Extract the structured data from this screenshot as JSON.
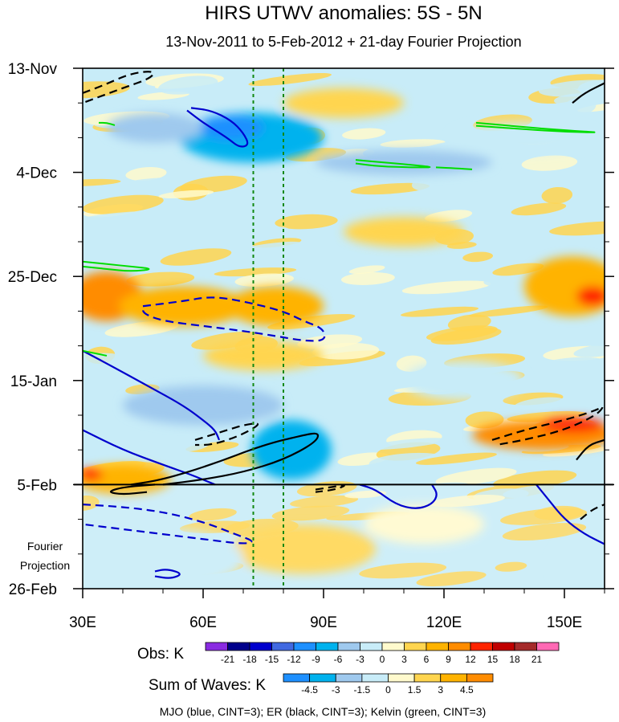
{
  "chart_data": {
    "type": "heatmap",
    "title": "HIRS UTWV anomalies: 5S - 5N",
    "subtitle": "13-Nov-2011 to 5-Feb-2012 + 21-day Fourier Projection",
    "xlabel": "",
    "ylabel": "",
    "x_axis": {
      "range": [
        30,
        160
      ],
      "ticks": [
        {
          "value": 30,
          "label": "30E"
        },
        {
          "value": 60,
          "label": "60E"
        },
        {
          "value": 90,
          "label": "90E"
        },
        {
          "value": 120,
          "label": "120E"
        },
        {
          "value": 150,
          "label": "150E"
        }
      ]
    },
    "y_axis": {
      "range_days": [
        0,
        105
      ],
      "direction": "down",
      "ticks": [
        {
          "day": 0,
          "label": "13-Nov"
        },
        {
          "day": 21,
          "label": "4-Dec"
        },
        {
          "day": 42,
          "label": "25-Dec"
        },
        {
          "day": 63,
          "label": "15-Jan"
        },
        {
          "day": 84,
          "label": "5-Feb"
        },
        {
          "day": 105,
          "label": "26-Feb"
        }
      ]
    },
    "projection_start_day": 84,
    "projection_label": [
      "Fourier",
      "Projection"
    ],
    "reference_lines_lon": [
      72.5,
      80
    ],
    "obs_colorbar": {
      "title": "Obs: K",
      "levels": [
        "-21",
        "-18",
        "-15",
        "-12",
        "-9",
        "-6",
        "-3",
        "0",
        "3",
        "6",
        "9",
        "12",
        "15",
        "18",
        "21"
      ],
      "colors": [
        "#8a2be2",
        "#00008b",
        "#0000cd",
        "#4169e1",
        "#1e90ff",
        "#00b2ee",
        "#9fc9ee",
        "#c8ecf8",
        "#fffacd",
        "#ffd54f",
        "#ffb300",
        "#ff8c00",
        "#ff2400",
        "#c00000",
        "#a52a2a",
        "#ff69b4"
      ]
    },
    "waves_colorbar": {
      "title": "Sum of Waves: K",
      "levels": [
        "-4.5",
        "-3",
        "-1.5",
        "0",
        "1.5",
        "3",
        "4.5"
      ],
      "colors": [
        "#1e90ff",
        "#00b2ee",
        "#9fc9ee",
        "#c8ecf8",
        "#fffacd",
        "#ffd54f",
        "#ffb300",
        "#ff8c00"
      ]
    },
    "legend_note": "MJO (blue, CINT=3); ER (black, CINT=3); Kelvin (green, CINT=3)",
    "contours": [
      {
        "wave": "MJO",
        "color": "#0000cd",
        "style": "solid",
        "points": [
          [
            57,
            8
          ],
          [
            62,
            8.5
          ],
          [
            67,
            10.5
          ],
          [
            70,
            13
          ],
          [
            71.5,
            15.5
          ],
          [
            69,
            16
          ],
          [
            66,
            14
          ],
          [
            60,
            11
          ],
          [
            56,
            8.5
          ]
        ]
      },
      {
        "wave": "MJO",
        "color": "#0000cd",
        "style": "solid",
        "points": [
          [
            30,
            57
          ],
          [
            37,
            60
          ],
          [
            46,
            64
          ],
          [
            55,
            68
          ],
          [
            60,
            71
          ],
          [
            63,
            73
          ],
          [
            64,
            75
          ]
        ]
      },
      {
        "wave": "MJO",
        "color": "#0000cd",
        "style": "solid",
        "points": [
          [
            30,
            73
          ],
          [
            40,
            77
          ],
          [
            50,
            80
          ],
          [
            57,
            82
          ],
          [
            63,
            84
          ]
        ]
      },
      {
        "wave": "MJO",
        "color": "#0000cd",
        "style": "solid",
        "points": [
          [
            99,
            84
          ],
          [
            103,
            85
          ],
          [
            108,
            88
          ],
          [
            113,
            89
          ],
          [
            117,
            88
          ],
          [
            118.5,
            86
          ],
          [
            117,
            84
          ]
        ]
      },
      {
        "wave": "MJO",
        "color": "#0000cd",
        "style": "solid",
        "points": [
          [
            143,
            84
          ],
          [
            146,
            87
          ],
          [
            150,
            91
          ],
          [
            155,
            94
          ],
          [
            160,
            96
          ]
        ]
      },
      {
        "wave": "MJO",
        "color": "#0000cd",
        "style": "solid",
        "points": [
          [
            48,
            101.5
          ],
          [
            51,
            101
          ],
          [
            55,
            102
          ],
          [
            52,
            103
          ],
          [
            48,
            102.5
          ]
        ]
      },
      {
        "wave": "MJO",
        "color": "#0000cd",
        "style": "dashed",
        "points": [
          [
            45,
            48
          ],
          [
            55,
            47
          ],
          [
            62,
            46
          ],
          [
            70,
            47
          ],
          [
            80,
            49
          ],
          [
            85,
            51
          ],
          [
            90,
            52.5
          ],
          [
            90.5,
            55
          ],
          [
            85,
            55
          ],
          [
            78,
            54
          ],
          [
            70,
            53
          ],
          [
            60,
            52
          ],
          [
            50,
            51
          ],
          [
            45,
            49.5
          ],
          [
            45,
            48
          ]
        ]
      },
      {
        "wave": "MJO",
        "color": "#0000cd",
        "style": "dashed",
        "points": [
          [
            30,
            88
          ],
          [
            40,
            88.5
          ],
          [
            50,
            89.5
          ],
          [
            60,
            91.5
          ],
          [
            68,
            94
          ],
          [
            73,
            95.5
          ],
          [
            70,
            96
          ],
          [
            60,
            95
          ],
          [
            50,
            94
          ],
          [
            40,
            93
          ],
          [
            30,
            92
          ]
        ]
      },
      {
        "wave": "ER",
        "color": "#000000",
        "style": "dashed",
        "points": [
          [
            30,
            5
          ],
          [
            35,
            3.5
          ],
          [
            42,
            1
          ],
          [
            48,
            0.5
          ],
          [
            47,
            2
          ],
          [
            40,
            4
          ],
          [
            35,
            5.5
          ],
          [
            30,
            7
          ]
        ]
      },
      {
        "wave": "ER",
        "color": "#000000",
        "style": "dashed",
        "points": [
          [
            58,
            75
          ],
          [
            62,
            74
          ],
          [
            66,
            73
          ],
          [
            70,
            72
          ],
          [
            74,
            71.5
          ],
          [
            73,
            72.5
          ],
          [
            68,
            74.5
          ],
          [
            62,
            76
          ],
          [
            58,
            76
          ]
        ]
      },
      {
        "wave": "ER",
        "color": "#000000",
        "style": "dashed",
        "points": [
          [
            132,
            75
          ],
          [
            140,
            73
          ],
          [
            150,
            71
          ],
          [
            158,
            69
          ],
          [
            160,
            68
          ],
          [
            158,
            70
          ],
          [
            150,
            73
          ],
          [
            140,
            75
          ],
          [
            133,
            76
          ]
        ]
      },
      {
        "wave": "ER",
        "color": "#000000",
        "style": "dashed",
        "points": [
          [
            88,
            85
          ],
          [
            92,
            84.5
          ],
          [
            96,
            84
          ],
          [
            93,
            85
          ],
          [
            88,
            85.5
          ]
        ]
      },
      {
        "wave": "ER",
        "color": "#000000",
        "style": "dashed",
        "points": [
          [
            154,
            91
          ],
          [
            157,
            89
          ],
          [
            160,
            88
          ]
        ]
      },
      {
        "wave": "ER",
        "color": "#000000",
        "style": "solid",
        "points": [
          [
            42,
            84
          ],
          [
            50,
            83
          ],
          [
            62,
            80
          ],
          [
            75,
            76
          ],
          [
            85,
            74
          ],
          [
            89,
            73.5
          ],
          [
            88,
            75.5
          ],
          [
            80,
            79
          ],
          [
            70,
            81.5
          ],
          [
            60,
            83
          ],
          [
            50,
            84
          ]
        ]
      },
      {
        "wave": "ER",
        "color": "#000000",
        "style": "solid",
        "points": [
          [
            48,
            84
          ],
          [
            40,
            84.5
          ],
          [
            36,
            85.5
          ],
          [
            40,
            86
          ],
          [
            46,
            85.5
          ]
        ]
      },
      {
        "wave": "ER",
        "color": "#000000",
        "style": "solid",
        "points": [
          [
            153,
            79
          ],
          [
            156,
            76
          ],
          [
            160,
            75
          ]
        ]
      },
      {
        "wave": "ER",
        "color": "#000000",
        "style": "solid",
        "points": [
          [
            152,
            7
          ],
          [
            155,
            5
          ],
          [
            160,
            3
          ]
        ]
      },
      {
        "wave": "Kelvin",
        "color": "#00dd00",
        "style": "solid",
        "points": [
          [
            30,
            39
          ],
          [
            36,
            39.5
          ],
          [
            42,
            40
          ],
          [
            48,
            40.5
          ],
          [
            42,
            41
          ],
          [
            36,
            40.5
          ],
          [
            30,
            40
          ]
        ]
      },
      {
        "wave": "Kelvin",
        "color": "#00dd00",
        "style": "solid",
        "points": [
          [
            30,
            57
          ],
          [
            33,
            57.5
          ],
          [
            36,
            58
          ]
        ]
      },
      {
        "wave": "Kelvin",
        "color": "#00dd00",
        "style": "solid",
        "points": [
          [
            98,
            18.5
          ],
          [
            105,
            19
          ],
          [
            112,
            19.5
          ],
          [
            118,
            20
          ],
          [
            112,
            20
          ],
          [
            104,
            19.8
          ],
          [
            98,
            19.2
          ]
        ]
      },
      {
        "wave": "Kelvin",
        "color": "#00dd00",
        "style": "solid",
        "points": [
          [
            118,
            20
          ],
          [
            123,
            20.2
          ],
          [
            127,
            20.4
          ]
        ]
      },
      {
        "wave": "Kelvin",
        "color": "#00dd00",
        "style": "solid",
        "points": [
          [
            128,
            11
          ],
          [
            135,
            11.5
          ],
          [
            142,
            12
          ],
          [
            150,
            12.5
          ],
          [
            160,
            13
          ],
          [
            150,
            12.8
          ],
          [
            140,
            12.3
          ],
          [
            128,
            11.6
          ]
        ]
      },
      {
        "wave": "Kelvin",
        "color": "#00dd00",
        "style": "solid",
        "points": [
          [
            34,
            11
          ],
          [
            36,
            11
          ],
          [
            38,
            11.5
          ]
        ]
      }
    ],
    "anomaly_blobs": [
      {
        "lon": 72,
        "day": 14,
        "rlon": 18,
        "rday": 5,
        "value": -9
      },
      {
        "lon": 67,
        "day": 12,
        "rlon": 8,
        "rday": 2.5,
        "value": -12
      },
      {
        "lon": 48,
        "day": 12,
        "rlon": 12,
        "rday": 3,
        "value": -6
      },
      {
        "lon": 110,
        "day": 19,
        "rlon": 22,
        "rday": 2.5,
        "value": -6
      },
      {
        "lon": 140,
        "day": 14,
        "rlon": 18,
        "rday": 3,
        "value": -3
      },
      {
        "lon": 95,
        "day": 7,
        "rlon": 15,
        "rday": 3,
        "value": 3
      },
      {
        "lon": 36,
        "day": 46,
        "rlon": 9,
        "rday": 5,
        "value": 9
      },
      {
        "lon": 55,
        "day": 48,
        "rlon": 16,
        "rday": 4,
        "value": 6
      },
      {
        "lon": 78,
        "day": 48,
        "rlon": 12,
        "rday": 4,
        "value": 6
      },
      {
        "lon": 152,
        "day": 44,
        "rlon": 12,
        "rday": 6,
        "value": 6
      },
      {
        "lon": 157,
        "day": 46,
        "rlon": 4,
        "rday": 2,
        "value": 12
      },
      {
        "lon": 60,
        "day": 68,
        "rlon": 20,
        "rday": 4,
        "value": -6
      },
      {
        "lon": 82,
        "day": 77,
        "rlon": 10,
        "rday": 6,
        "value": -9
      },
      {
        "lon": 145,
        "day": 74,
        "rlon": 18,
        "rday": 3,
        "value": 9
      },
      {
        "lon": 152,
        "day": 72,
        "rlon": 8,
        "rday": 1.5,
        "value": 12
      },
      {
        "lon": 40,
        "day": 83,
        "rlon": 12,
        "rday": 3,
        "value": 6
      },
      {
        "lon": 32,
        "day": 82,
        "rlon": 3,
        "rday": 1.2,
        "value": 12
      },
      {
        "lon": 75,
        "day": 58,
        "rlon": 15,
        "rday": 3,
        "value": 3
      },
      {
        "lon": 110,
        "day": 33,
        "rlon": 15,
        "rday": 3,
        "value": 3
      },
      {
        "lon": 125,
        "day": 63,
        "rlon": 15,
        "rday": 4,
        "value": -3
      },
      {
        "lon": 155,
        "day": 100,
        "rlon": 8,
        "rday": 5,
        "value": -3
      },
      {
        "lon": 85,
        "day": 97,
        "rlon": 18,
        "rday": 5,
        "value": 3
      },
      {
        "lon": 115,
        "day": 92,
        "rlon": 15,
        "rday": 4,
        "value": 1.5
      },
      {
        "lon": 50,
        "day": 99,
        "rlon": 20,
        "rday": 6,
        "value": -1.5
      }
    ]
  }
}
